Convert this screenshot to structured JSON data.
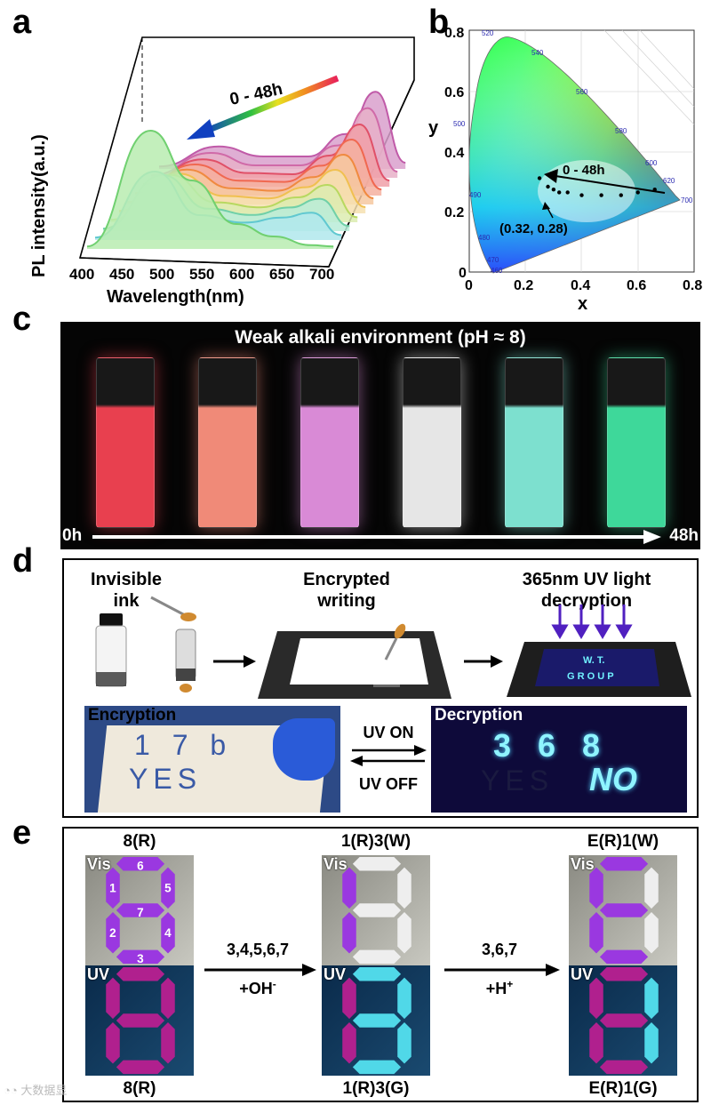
{
  "panel_a": {
    "letter": "a",
    "chart_data": {
      "type": "line",
      "title": "",
      "xlabel": "Wavelength(nm)",
      "ylabel": "PL intensity(a.u.)",
      "x_ticks": [
        "400",
        "450",
        "500",
        "550",
        "600",
        "650",
        "700"
      ],
      "xlim": [
        380,
        730
      ],
      "annotation": "0 - 48h",
      "series_count": 10,
      "series": [
        {
          "values": [
            [
              400,
              0.02
            ],
            [
              480,
              0.18
            ],
            [
              540,
              0.1
            ],
            [
              600,
              0.1
            ],
            [
              650,
              0.28
            ],
            [
              690,
              0.62
            ],
            [
              730,
              0.05
            ]
          ]
        },
        {
          "values": [
            [
              400,
              0.02
            ],
            [
              480,
              0.2
            ],
            [
              540,
              0.1
            ],
            [
              600,
              0.1
            ],
            [
              650,
              0.26
            ],
            [
              690,
              0.56
            ],
            [
              730,
              0.05
            ]
          ]
        },
        {
          "values": [
            [
              400,
              0.02
            ],
            [
              480,
              0.22
            ],
            [
              540,
              0.11
            ],
            [
              600,
              0.1
            ],
            [
              650,
              0.25
            ],
            [
              690,
              0.5
            ],
            [
              730,
              0.05
            ]
          ]
        },
        {
          "values": [
            [
              400,
              0.02
            ],
            [
              480,
              0.25
            ],
            [
              540,
              0.12
            ],
            [
              600,
              0.11
            ],
            [
              650,
              0.24
            ],
            [
              690,
              0.45
            ],
            [
              730,
              0.05
            ]
          ]
        },
        {
          "values": [
            [
              400,
              0.02
            ],
            [
              480,
              0.28
            ],
            [
              540,
              0.13
            ],
            [
              600,
              0.11
            ],
            [
              650,
              0.22
            ],
            [
              690,
              0.4
            ],
            [
              730,
              0.05
            ]
          ]
        },
        {
          "values": [
            [
              400,
              0.02
            ],
            [
              480,
              0.32
            ],
            [
              540,
              0.14
            ],
            [
              600,
              0.12
            ],
            [
              650,
              0.21
            ],
            [
              690,
              0.35
            ],
            [
              730,
              0.05
            ]
          ]
        },
        {
          "values": [
            [
              400,
              0.02
            ],
            [
              480,
              0.38
            ],
            [
              540,
              0.16
            ],
            [
              600,
              0.12
            ],
            [
              650,
              0.2
            ],
            [
              690,
              0.3
            ],
            [
              730,
              0.04
            ]
          ]
        },
        {
          "values": [
            [
              400,
              0.02
            ],
            [
              480,
              0.45
            ],
            [
              540,
              0.18
            ],
            [
              600,
              0.13
            ],
            [
              650,
              0.19
            ],
            [
              690,
              0.26
            ],
            [
              730,
              0.04
            ]
          ]
        },
        {
          "values": [
            [
              400,
              0.02
            ],
            [
              480,
              0.55
            ],
            [
              540,
              0.2
            ],
            [
              600,
              0.14
            ],
            [
              650,
              0.18
            ],
            [
              690,
              0.22
            ],
            [
              730,
              0.04
            ]
          ]
        },
        {
          "values": [
            [
              400,
              0.02
            ],
            [
              485,
              0.95
            ],
            [
              540,
              0.55
            ],
            [
              600,
              0.2
            ],
            [
              650,
              0.1
            ],
            [
              700,
              0.03
            ],
            [
              730,
              0.02
            ]
          ]
        }
      ]
    }
  },
  "panel_b": {
    "letter": "b",
    "chart_data": {
      "type": "scatter",
      "xlabel": "x",
      "ylabel": "y",
      "xlim": [
        0,
        0.8
      ],
      "ylim": [
        0,
        0.85
      ],
      "x_ticks": [
        "0",
        "0.2",
        "0.4",
        "0.6",
        "0.8"
      ],
      "y_ticks": [
        "0",
        "0.2",
        "0.4",
        "0.6",
        "0.8"
      ],
      "wavelength_labels": [
        "520",
        "540",
        "560",
        "580",
        "600",
        "620",
        "700",
        "500",
        "490",
        "480",
        "470",
        "460"
      ],
      "annotation_arrow": "0 - 48h",
      "annotation_point": "(0.32, 0.28)",
      "points": [
        [
          0.66,
          0.29
        ],
        [
          0.6,
          0.28
        ],
        [
          0.54,
          0.27
        ],
        [
          0.47,
          0.27
        ],
        [
          0.4,
          0.27
        ],
        [
          0.35,
          0.28
        ],
        [
          0.32,
          0.28
        ],
        [
          0.3,
          0.29
        ],
        [
          0.28,
          0.3
        ],
        [
          0.25,
          0.33
        ]
      ]
    }
  },
  "panel_c": {
    "letter": "c",
    "title": "Weak alkali environment (pH ≈ 8)",
    "start_label": "0h",
    "end_label": "48h",
    "vial_colors": [
      "#e8404f",
      "#f08a78",
      "#d98ad6",
      "#e6e6e6",
      "#7de0cf",
      "#3ed89a"
    ]
  },
  "panel_d": {
    "letter": "d",
    "step1": "Invisible\nink",
    "step2": "Encrypted\nwriting",
    "step3": "365nm UV light\ndecryption",
    "screen_text_line1": "W. T.",
    "screen_text_line2": "G R O U P",
    "encryption_label": "Encryption",
    "decryption_label": "Decryption",
    "uv_on": "UV ON",
    "uv_off": "UV OFF",
    "enc_line1": "1 7 b",
    "enc_line2": "YES",
    "dec_line1": "3 6 8",
    "dec_line2_dim": "YES",
    "dec_line2_glow": "NO"
  },
  "panel_e": {
    "letter": "e",
    "top_labels": [
      "8(R)",
      "1(R)3(W)",
      "E(R)1(W)"
    ],
    "bottom_labels": [
      "8(R)",
      "1(R)3(G)",
      "E(R)1(G)"
    ],
    "vis": "Vis",
    "uv": "UV",
    "segment_numbers": [
      "1",
      "2",
      "3",
      "4",
      "5",
      "6",
      "7"
    ],
    "step1_top": "3,4,5,6,7",
    "step1_bottom": "+OH",
    "step1_sup": "-",
    "step2_top": "3,6,7",
    "step2_bottom": "+H",
    "step2_sup": "+",
    "watermark": "大数据显"
  }
}
